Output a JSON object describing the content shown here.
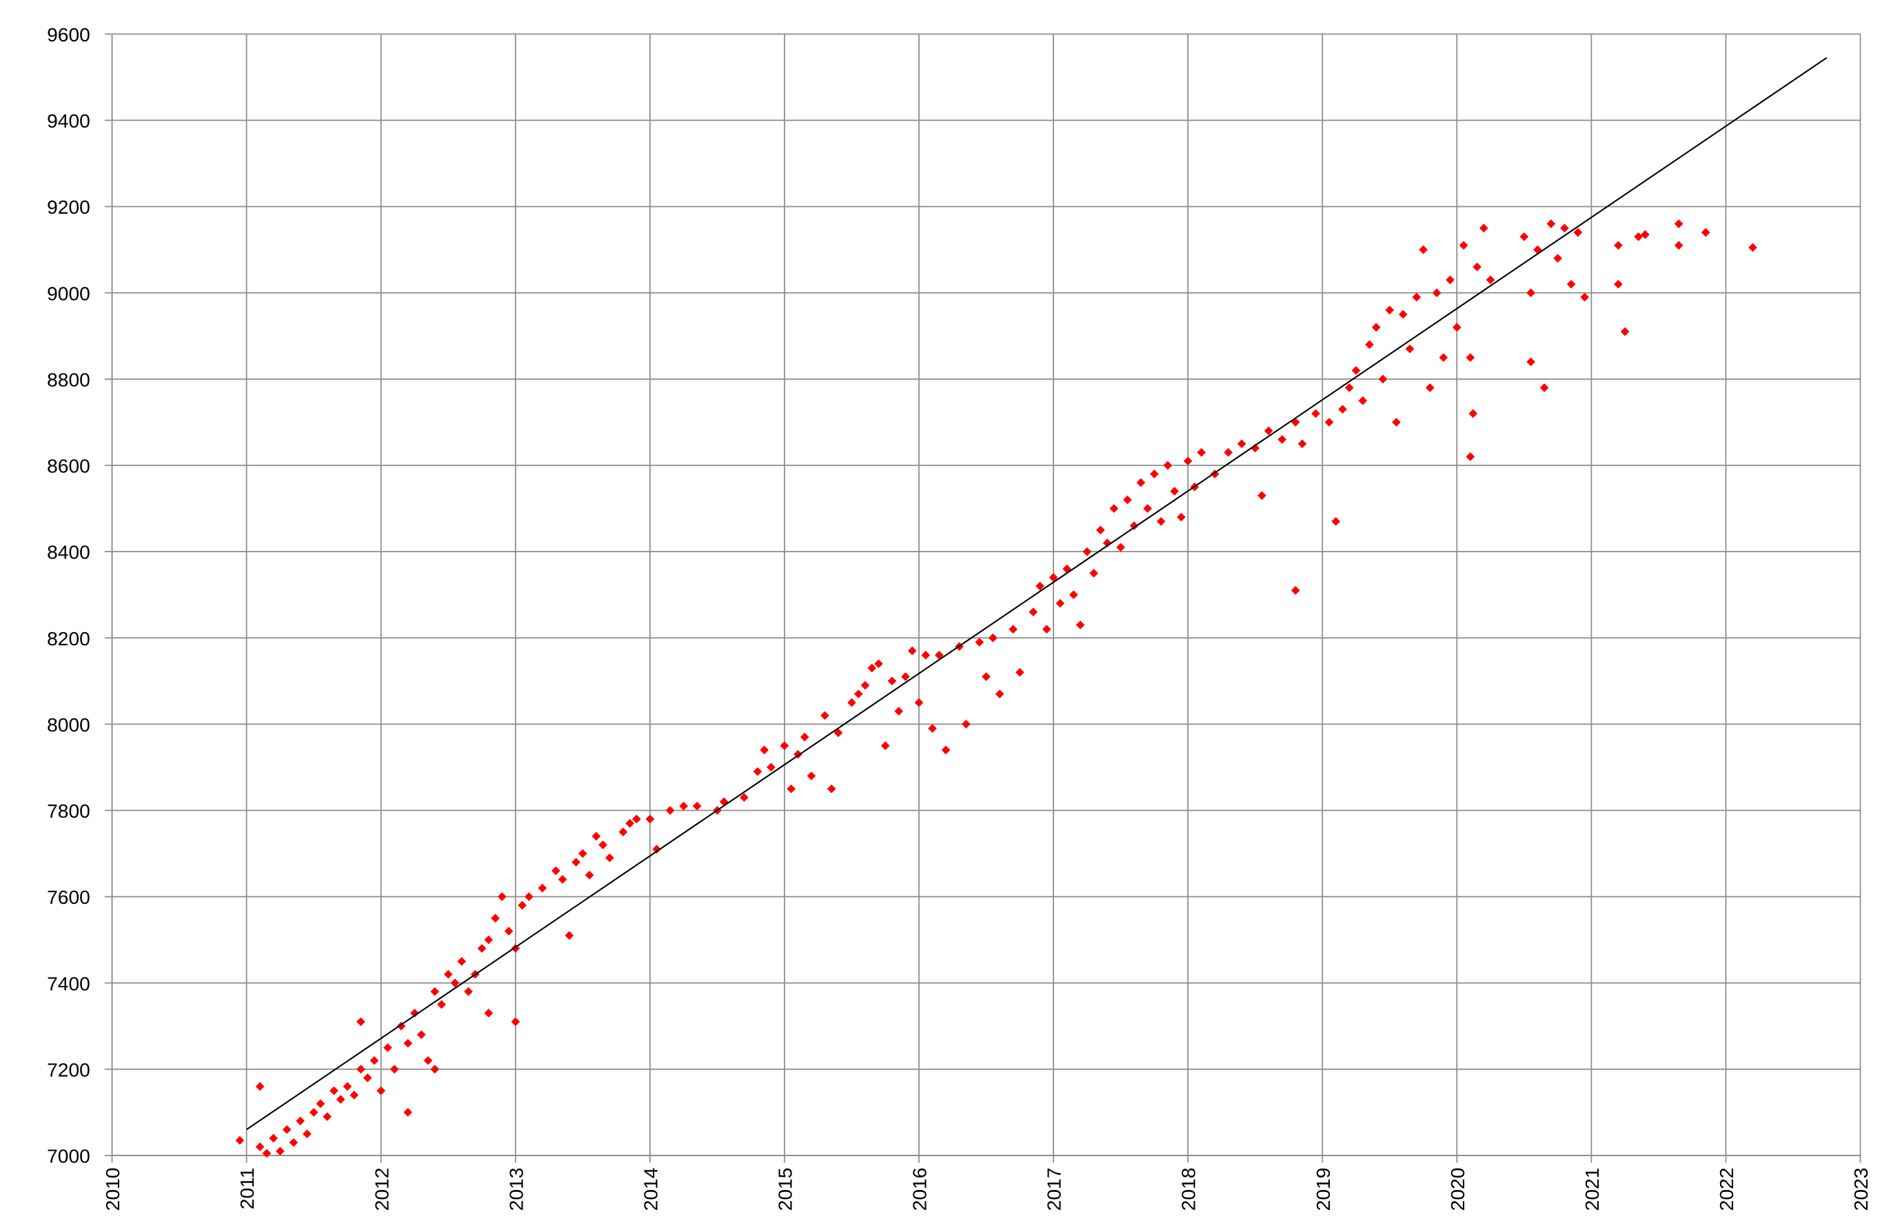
{
  "chart_data": {
    "type": "scatter",
    "xlim": [
      2010,
      2023
    ],
    "xticks": [
      2010,
      2011,
      2012,
      2013,
      2014,
      2015,
      2016,
      2017,
      2018,
      2019,
      2020,
      2021,
      2022,
      2023
    ],
    "ylim": [
      7000,
      9600
    ],
    "yticks": [
      7000,
      7200,
      7400,
      7600,
      7800,
      8000,
      8200,
      8400,
      8600,
      8800,
      9000,
      9200,
      9400,
      9600
    ],
    "grid": true,
    "color": "#ff0000",
    "x": [
      2010.95,
      2011.1,
      2011.1,
      2011.15,
      2011.2,
      2011.25,
      2011.3,
      2011.35,
      2011.4,
      2011.45,
      2011.5,
      2011.55,
      2011.6,
      2011.65,
      2011.7,
      2011.75,
      2011.8,
      2011.85,
      2011.85,
      2011.9,
      2011.95,
      2012.0,
      2012.05,
      2012.1,
      2012.15,
      2012.2,
      2012.2,
      2012.25,
      2012.3,
      2012.35,
      2012.4,
      2012.4,
      2012.45,
      2012.5,
      2012.55,
      2012.6,
      2012.65,
      2012.7,
      2012.75,
      2012.8,
      2012.8,
      2012.85,
      2012.9,
      2012.95,
      2013.0,
      2013.0,
      2013.05,
      2013.1,
      2013.2,
      2013.3,
      2013.35,
      2013.4,
      2013.45,
      2013.5,
      2013.55,
      2013.6,
      2013.65,
      2013.7,
      2013.8,
      2013.85,
      2013.9,
      2014.05,
      2014.0,
      2014.15,
      2014.25,
      2014.35,
      2014.5,
      2014.55,
      2014.7,
      2014.8,
      2014.85,
      2014.9,
      2015.0,
      2015.05,
      2015.1,
      2015.15,
      2015.2,
      2015.3,
      2015.35,
      2015.4,
      2015.5,
      2015.55,
      2015.6,
      2015.65,
      2015.7,
      2015.75,
      2015.8,
      2015.85,
      2015.9,
      2015.95,
      2016.0,
      2016.05,
      2016.1,
      2016.15,
      2016.2,
      2016.3,
      2016.35,
      2016.45,
      2016.5,
      2016.55,
      2016.6,
      2016.7,
      2016.75,
      2016.85,
      2016.9,
      2016.95,
      2017.0,
      2017.05,
      2017.1,
      2017.15,
      2017.2,
      2017.25,
      2017.3,
      2017.35,
      2017.4,
      2017.45,
      2017.5,
      2017.55,
      2017.6,
      2017.65,
      2017.7,
      2017.75,
      2017.8,
      2017.85,
      2017.9,
      2017.95,
      2018.0,
      2018.05,
      2018.1,
      2018.2,
      2018.3,
      2018.4,
      2018.5,
      2018.55,
      2018.6,
      2018.7,
      2018.8,
      2018.8,
      2018.85,
      2018.95,
      2019.05,
      2019.1,
      2019.15,
      2019.2,
      2019.25,
      2019.3,
      2019.35,
      2019.4,
      2019.45,
      2019.5,
      2019.55,
      2019.6,
      2019.65,
      2019.7,
      2019.75,
      2019.8,
      2019.85,
      2019.9,
      2019.95,
      2020.0,
      2020.05,
      2020.1,
      2020.1,
      2020.12,
      2020.15,
      2020.2,
      2020.25,
      2020.5,
      2020.55,
      2020.55,
      2020.6,
      2020.65,
      2020.7,
      2020.75,
      2020.8,
      2020.85,
      2020.9,
      2020.95,
      2021.2,
      2021.2,
      2021.25,
      2021.35,
      2021.4,
      2021.65,
      2021.65,
      2021.85,
      2022.2
    ],
    "values": [
      7035,
      7160,
      7020,
      7005,
      7040,
      7010,
      7060,
      7030,
      7080,
      7050,
      7100,
      7120,
      7090,
      7150,
      7130,
      7160,
      7140,
      7200,
      7310,
      7180,
      7220,
      7150,
      7250,
      7200,
      7300,
      7260,
      7100,
      7330,
      7280,
      7220,
      7380,
      7200,
      7350,
      7420,
      7400,
      7450,
      7380,
      7420,
      7480,
      7500,
      7330,
      7550,
      7600,
      7520,
      7480,
      7310,
      7580,
      7600,
      7620,
      7660,
      7640,
      7510,
      7680,
      7700,
      7650,
      7740,
      7720,
      7690,
      7750,
      7770,
      7780,
      7710,
      7780,
      7800,
      7810,
      7810,
      7800,
      7820,
      7830,
      7890,
      7940,
      7900,
      7950,
      7850,
      7930,
      7970,
      7880,
      8020,
      7850,
      7980,
      8050,
      8070,
      8090,
      8130,
      8140,
      7950,
      8100,
      8030,
      8110,
      8170,
      8050,
      8160,
      7990,
      8160,
      7940,
      8180,
      8000,
      8190,
      8110,
      8200,
      8070,
      8220,
      8120,
      8260,
      8320,
      8220,
      8340,
      8280,
      8360,
      8300,
      8230,
      8400,
      8350,
      8450,
      8420,
      8500,
      8410,
      8520,
      8460,
      8560,
      8500,
      8580,
      8470,
      8600,
      8540,
      8480,
      8610,
      8550,
      8630,
      8580,
      8630,
      8650,
      8640,
      8530,
      8680,
      8660,
      8700,
      8310,
      8650,
      8720,
      8700,
      8470,
      8730,
      8780,
      8820,
      8750,
      8880,
      8920,
      8800,
      8960,
      8700,
      8950,
      8870,
      8990,
      9100,
      8780,
      9000,
      8850,
      9030,
      8920,
      9110,
      8850,
      8620,
      8720,
      9060,
      9150,
      9030,
      9130,
      9000,
      8840,
      9100,
      8780,
      9160,
      9080,
      9150,
      9020,
      9140,
      8990,
      9110,
      9020,
      8910,
      9130,
      9135,
      9160,
      9110,
      9140,
      9105
    ],
    "trendline": {
      "color": "#000000",
      "x": [
        2011.0,
        2022.75
      ],
      "values": [
        7060,
        9545
      ]
    }
  }
}
